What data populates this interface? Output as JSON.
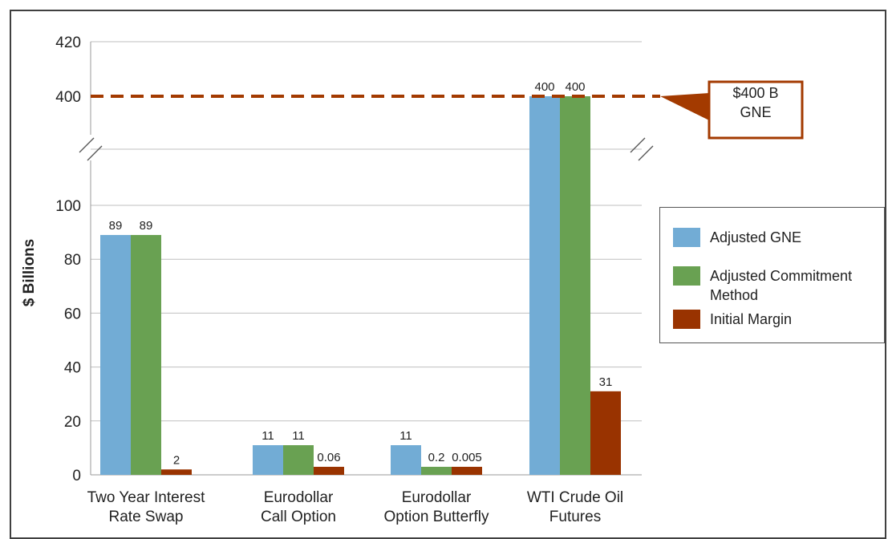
{
  "chart_data": {
    "type": "bar",
    "ylabel": "$ Billions",
    "ylim_lower": [
      0,
      110
    ],
    "ylim_upper": [
      400,
      420
    ],
    "axis_break": true,
    "yticks_lower": [
      0,
      20,
      40,
      60,
      80,
      100
    ],
    "yticks_upper": [
      400,
      420
    ],
    "categories": [
      [
        "Two Year Interest",
        "Rate Swap"
      ],
      [
        "Eurodollar",
        "Call Option"
      ],
      [
        "Eurodollar",
        "Option Butterfly"
      ],
      [
        "WTI Crude Oil",
        "Futures"
      ]
    ],
    "series": [
      {
        "name": "Adjusted GNE",
        "color": "#72acd5",
        "values": [
          89,
          11,
          11,
          400
        ],
        "labels": [
          "89",
          "11",
          "11",
          "400"
        ]
      },
      {
        "name": "Adjusted Commitment Method",
        "color": "#69a152",
        "values": [
          89,
          11,
          0.2,
          400
        ],
        "labels": [
          "89",
          "11",
          "0.2",
          "400"
        ]
      },
      {
        "name": "Initial Margin",
        "color": "#993300",
        "values": [
          2,
          0.06,
          0.005,
          31
        ],
        "labels": [
          "2",
          "0.06",
          "0.005",
          "31"
        ]
      }
    ],
    "reference_line": {
      "value": 400,
      "color": "#a33a00",
      "style": "dashed"
    },
    "callout": {
      "lines": [
        "$400 B",
        "GNE"
      ],
      "color": "#a33a00"
    },
    "legend_position": "right",
    "grid": true
  },
  "legend": {
    "items": [
      {
        "label": "Adjusted GNE",
        "color": "#72acd5"
      },
      {
        "label": "Adjusted Commitment Method",
        "color": "#69a152"
      },
      {
        "label": "Initial Margin",
        "color": "#993300"
      }
    ]
  },
  "callout": {
    "line1": "$400 B",
    "line2": "GNE"
  }
}
